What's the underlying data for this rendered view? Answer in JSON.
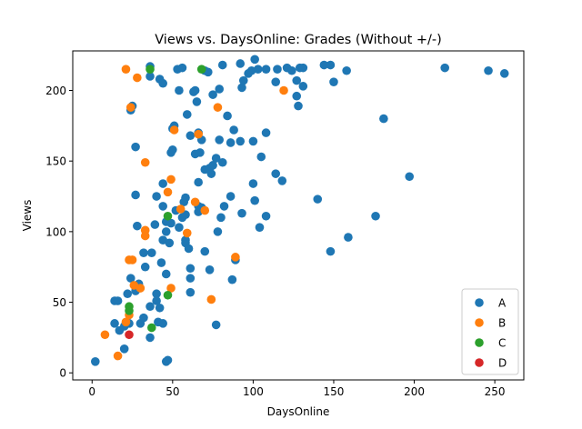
{
  "chart_data": {
    "type": "scatter",
    "title": "Views vs. DaysOnline: Grades (Without +/-)",
    "xlabel": "DaysOnline",
    "ylabel": "Views",
    "xlim": [
      -12,
      268
    ],
    "ylim": [
      -5,
      228
    ],
    "xticks": [
      0,
      50,
      100,
      150,
      200,
      250
    ],
    "yticks": [
      0,
      50,
      100,
      150,
      200
    ],
    "grid": false,
    "legend_position": "lower-right",
    "series": [
      {
        "name": "A",
        "color": "#1f77b4",
        "points": [
          [
            2,
            8
          ],
          [
            46,
            8
          ],
          [
            47,
            9
          ],
          [
            20,
            17
          ],
          [
            36,
            25
          ],
          [
            17,
            30
          ],
          [
            20,
            33
          ],
          [
            14,
            35
          ],
          [
            23,
            35
          ],
          [
            30,
            35
          ],
          [
            32,
            39
          ],
          [
            44,
            35
          ],
          [
            41,
            36
          ],
          [
            36,
            47
          ],
          [
            42,
            46
          ],
          [
            40,
            51
          ],
          [
            14,
            51
          ],
          [
            16,
            51
          ],
          [
            22,
            56
          ],
          [
            27,
            58
          ],
          [
            29,
            63
          ],
          [
            24,
            67
          ],
          [
            40,
            56
          ],
          [
            46,
            70
          ],
          [
            61,
            57
          ],
          [
            61,
            67
          ],
          [
            61,
            74
          ],
          [
            73,
            73
          ],
          [
            77,
            34
          ],
          [
            32,
            85
          ],
          [
            37,
            85
          ],
          [
            33,
            75
          ],
          [
            43,
            78
          ],
          [
            44,
            94
          ],
          [
            48,
            92
          ],
          [
            58,
            92
          ],
          [
            58,
            94
          ],
          [
            60,
            88
          ],
          [
            39,
            105
          ],
          [
            46,
            100
          ],
          [
            46,
            107
          ],
          [
            49,
            106
          ],
          [
            54,
            103
          ],
          [
            56,
            110
          ],
          [
            58,
            112
          ],
          [
            52,
            115
          ],
          [
            28,
            104
          ],
          [
            57,
            121
          ],
          [
            58,
            124
          ],
          [
            66,
            114
          ],
          [
            66,
            118
          ],
          [
            68,
            117
          ],
          [
            70,
            86
          ],
          [
            78,
            100
          ],
          [
            80,
            110
          ],
          [
            82,
            118
          ],
          [
            87,
            66
          ],
          [
            89,
            80
          ],
          [
            86,
            125
          ],
          [
            93,
            113
          ],
          [
            100,
            134
          ],
          [
            101,
            122
          ],
          [
            104,
            103
          ],
          [
            108,
            111
          ],
          [
            27,
            126
          ],
          [
            40,
            125
          ],
          [
            44,
            118
          ],
          [
            44,
            134
          ],
          [
            66,
            135
          ],
          [
            64,
            155
          ],
          [
            70,
            144
          ],
          [
            73,
            145
          ],
          [
            74,
            141
          ],
          [
            75,
            147
          ],
          [
            77,
            152
          ],
          [
            81,
            149
          ],
          [
            67,
            156
          ],
          [
            68,
            165
          ],
          [
            61,
            168
          ],
          [
            66,
            170
          ],
          [
            49,
            156
          ],
          [
            50,
            158
          ],
          [
            51,
            175
          ],
          [
            27,
            160
          ],
          [
            79,
            165
          ],
          [
            86,
            163
          ],
          [
            88,
            172
          ],
          [
            92,
            164
          ],
          [
            100,
            164
          ],
          [
            105,
            153
          ],
          [
            108,
            170
          ],
          [
            114,
            141
          ],
          [
            118,
            136
          ],
          [
            140,
            123
          ],
          [
            148,
            86
          ],
          [
            159,
            96
          ],
          [
            176,
            111
          ],
          [
            197,
            139
          ],
          [
            59,
            183
          ],
          [
            65,
            192
          ],
          [
            75,
            197
          ],
          [
            84,
            182
          ],
          [
            79,
            201
          ],
          [
            93,
            202
          ],
          [
            94,
            207
          ],
          [
            97,
            212
          ],
          [
            24,
            186
          ],
          [
            25,
            189
          ],
          [
            36,
            210
          ],
          [
            36,
            217
          ],
          [
            42,
            208
          ],
          [
            44,
            205
          ],
          [
            50,
            173
          ],
          [
            54,
            200
          ],
          [
            53,
            215
          ],
          [
            56,
            216
          ],
          [
            63,
            199
          ],
          [
            64,
            200
          ],
          [
            70,
            214
          ],
          [
            72,
            213
          ],
          [
            81,
            218
          ],
          [
            92,
            219
          ],
          [
            99,
            214
          ],
          [
            103,
            215
          ],
          [
            101,
            222
          ],
          [
            108,
            215
          ],
          [
            114,
            206
          ],
          [
            115,
            215
          ],
          [
            121,
            216
          ],
          [
            124,
            214
          ],
          [
            127,
            196
          ],
          [
            127,
            207
          ],
          [
            128,
            189
          ],
          [
            129,
            216
          ],
          [
            131,
            203
          ],
          [
            131,
            216
          ],
          [
            144,
            218
          ],
          [
            148,
            218
          ],
          [
            150,
            206
          ],
          [
            158,
            214
          ],
          [
            181,
            180
          ],
          [
            219,
            216
          ],
          [
            246,
            214
          ],
          [
            256,
            212
          ]
        ]
      },
      {
        "name": "B",
        "color": "#ff7f0e",
        "points": [
          [
            8,
            27
          ],
          [
            16,
            12
          ],
          [
            21,
            36
          ],
          [
            23,
            41
          ],
          [
            23,
            80
          ],
          [
            25,
            80
          ],
          [
            26,
            62
          ],
          [
            30,
            60
          ],
          [
            33,
            101
          ],
          [
            33,
            97
          ],
          [
            33,
            149
          ],
          [
            47,
            128
          ],
          [
            49,
            60
          ],
          [
            49,
            137
          ],
          [
            51,
            172
          ],
          [
            55,
            116
          ],
          [
            59,
            99
          ],
          [
            64,
            121
          ],
          [
            66,
            169
          ],
          [
            70,
            115
          ],
          [
            74,
            52
          ],
          [
            78,
            188
          ],
          [
            89,
            82
          ],
          [
            119,
            200
          ],
          [
            21,
            215
          ],
          [
            28,
            209
          ],
          [
            24,
            188
          ]
        ]
      },
      {
        "name": "C",
        "color": "#2ca02c",
        "points": [
          [
            23,
            47
          ],
          [
            23,
            44
          ],
          [
            37,
            32
          ],
          [
            36,
            215
          ],
          [
            47,
            55
          ],
          [
            47,
            111
          ],
          [
            68,
            215
          ]
        ]
      },
      {
        "name": "D",
        "color": "#d62728",
        "points": [
          [
            23,
            27
          ]
        ]
      }
    ]
  }
}
